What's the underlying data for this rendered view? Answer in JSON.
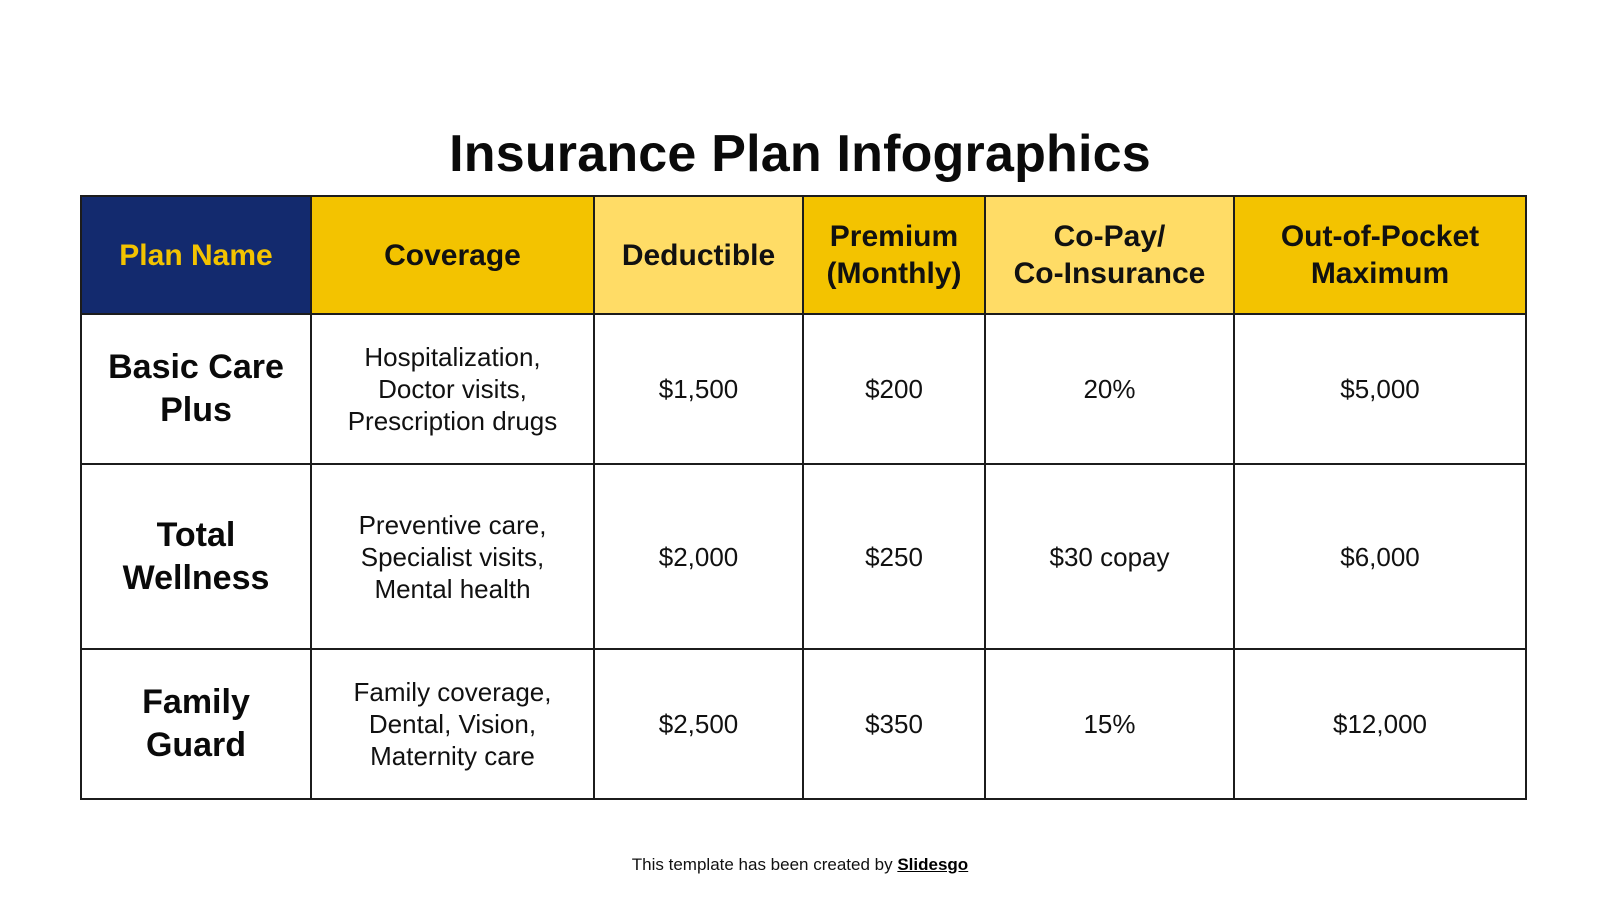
{
  "title": "Insurance Plan Infographics",
  "table": {
    "headers": [
      {
        "lines": [
          "Plan Name"
        ]
      },
      {
        "lines": [
          "Coverage"
        ]
      },
      {
        "lines": [
          "Deductible"
        ]
      },
      {
        "lines": [
          "Premium",
          "(Monthly)"
        ]
      },
      {
        "lines": [
          "Co-Pay/",
          "Co-Insurance"
        ]
      },
      {
        "lines": [
          "Out-of-Pocket",
          "Maximum"
        ]
      }
    ],
    "rows": [
      {
        "plan_name": [
          "Basic Care",
          "Plus"
        ],
        "coverage": [
          "Hospitalization,",
          "Doctor visits,",
          "Prescription drugs"
        ],
        "deductible": "$1,500",
        "premium": "$200",
        "copay": "20%",
        "oop_max": "$5,000"
      },
      {
        "plan_name": [
          "Total",
          "Wellness"
        ],
        "coverage": [
          "Preventive care,",
          "Specialist visits,",
          "Mental health"
        ],
        "deductible": "$2,000",
        "premium": "$250",
        "copay": "$30 copay",
        "oop_max": "$6,000"
      },
      {
        "plan_name": [
          "Family",
          "Guard"
        ],
        "coverage": [
          "Family coverage,",
          "Dental, Vision,",
          "Maternity care"
        ],
        "deductible": "$2,500",
        "premium": "$350",
        "copay": "15%",
        "oop_max": "$12,000"
      }
    ]
  },
  "footer": {
    "text": "This template has been created by",
    "brand": "Slidesgo"
  },
  "colors": {
    "navy": "#132a6e",
    "gold": "#f3c300",
    "light_gold": "#ffdc66",
    "border": "#1c1c1c"
  }
}
